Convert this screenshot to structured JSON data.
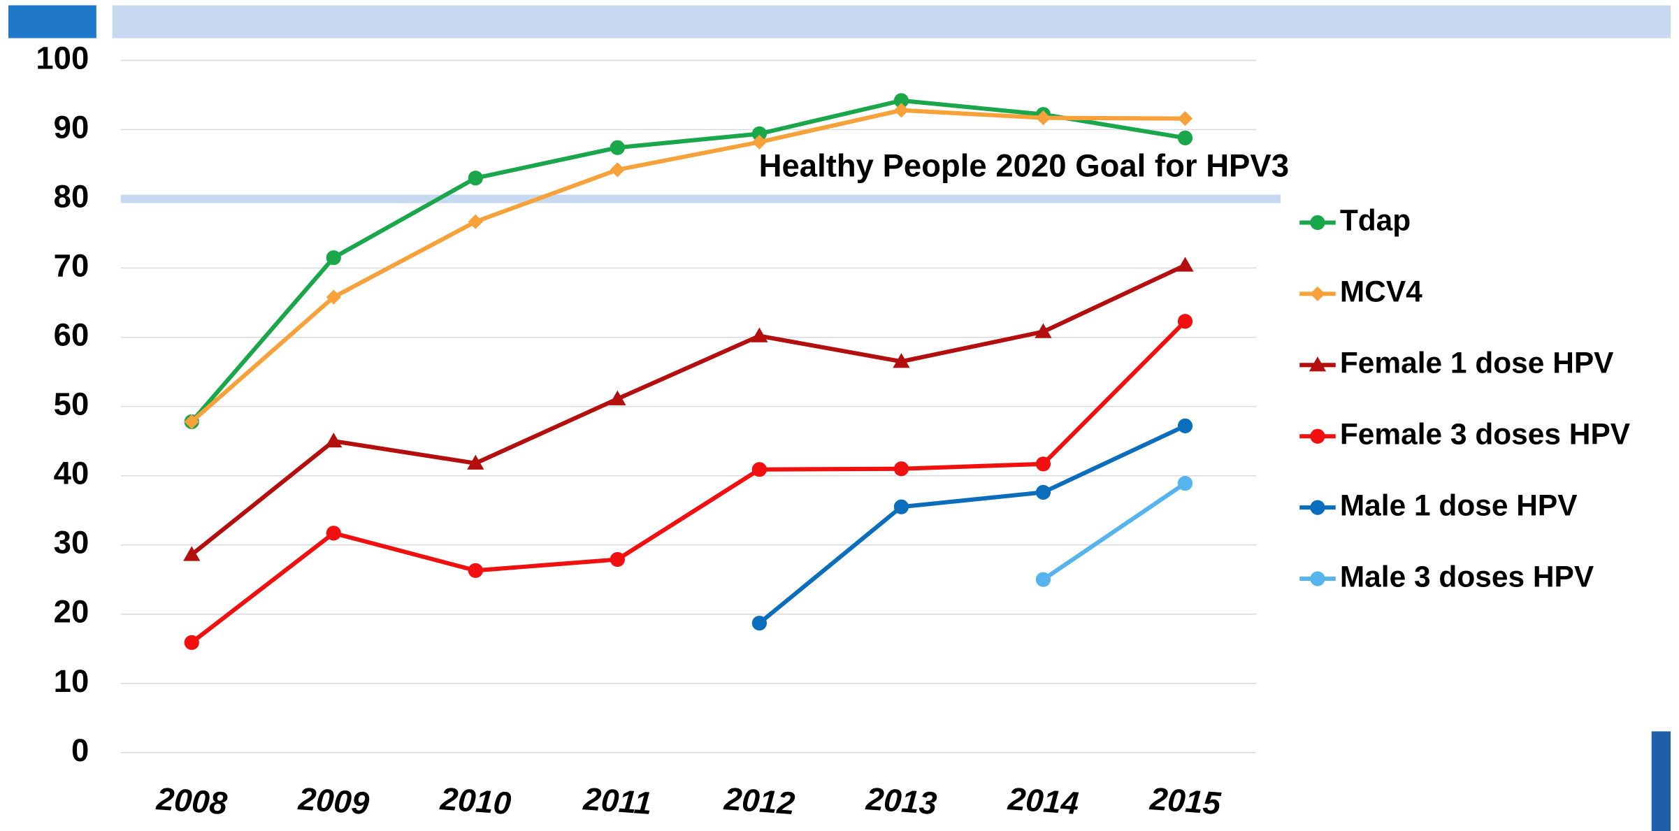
{
  "chart_data": {
    "type": "line",
    "categories": [
      "2008",
      "2009",
      "2010",
      "2011",
      "2012",
      "2013",
      "2014",
      "2015"
    ],
    "series": [
      {
        "name": "Tdap",
        "color": "#1aa64a",
        "marker": "circle",
        "values": [
          47.8,
          71.5,
          83.0,
          87.4,
          89.4,
          94.2,
          92.2,
          88.8
        ]
      },
      {
        "name": "MCV4",
        "color": "#f7a13a",
        "marker": "diamond",
        "values": [
          47.8,
          65.8,
          76.7,
          84.2,
          88.2,
          92.8,
          91.7,
          91.6
        ]
      },
      {
        "name": "Female 1 dose HPV",
        "color": "#b40f0f",
        "marker": "triangle",
        "values": [
          28.6,
          45.0,
          41.8,
          51.1,
          60.2,
          56.5,
          60.8,
          70.4
        ]
      },
      {
        "name": "Female 3 doses HPV",
        "color": "#f01010",
        "marker": "circle",
        "values": [
          15.9,
          31.7,
          26.3,
          27.9,
          40.9,
          41.0,
          41.7,
          62.3
        ]
      },
      {
        "name": "Male 1 dose HPV",
        "color": "#0a6ebd",
        "marker": "circle",
        "values": [
          null,
          null,
          null,
          null,
          18.7,
          35.5,
          37.6,
          47.2
        ]
      },
      {
        "name": "Male 3 doses HPV",
        "color": "#55b4ee",
        "marker": "circle",
        "values": [
          null,
          null,
          null,
          null,
          null,
          null,
          25.0,
          38.9
        ]
      }
    ],
    "goal": {
      "label": "Healthy People 2020 Goal for HPV3",
      "value": 80,
      "color": "#c6d9f0"
    },
    "ylim": [
      0,
      100
    ],
    "yticks": [
      0,
      10,
      20,
      30,
      40,
      50,
      60,
      70,
      80,
      90,
      100
    ],
    "grid": true,
    "legend": "right"
  }
}
